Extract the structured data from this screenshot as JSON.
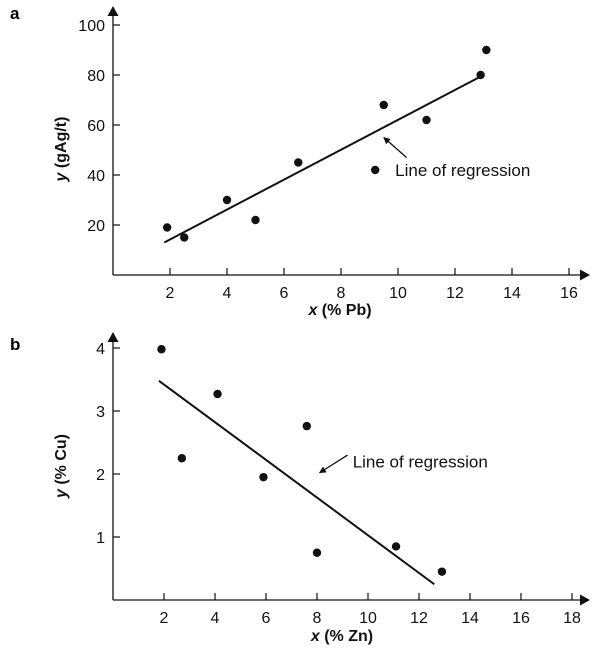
{
  "chart_data": [
    {
      "panel": "a",
      "type": "scatter",
      "x_var": "x",
      "x_unit": " (% Pb)",
      "y_var": "y",
      "y_unit": " (gAg/t)",
      "xlim": [
        0,
        17
      ],
      "ylim": [
        0,
        106
      ],
      "x_ticks": [
        2,
        4,
        6,
        8,
        10,
        12,
        14,
        16
      ],
      "y_ticks": [
        20,
        40,
        60,
        80,
        100
      ],
      "grid": false,
      "points": [
        {
          "x": 1.9,
          "y": 19
        },
        {
          "x": 2.5,
          "y": 15
        },
        {
          "x": 4.0,
          "y": 30
        },
        {
          "x": 5.0,
          "y": 22
        },
        {
          "x": 6.5,
          "y": 45
        },
        {
          "x": 9.2,
          "y": 42
        },
        {
          "x": 9.5,
          "y": 68
        },
        {
          "x": 11.0,
          "y": 62
        },
        {
          "x": 12.9,
          "y": 80
        },
        {
          "x": 13.1,
          "y": 90
        }
      ],
      "regression_line": {
        "x": [
          1.8,
          13.0
        ],
        "y": [
          13,
          80
        ]
      },
      "annotation": {
        "text": "Line of regression",
        "text_at": {
          "x": 9.9,
          "y": 42
        },
        "arrow_from": {
          "x": 10.3,
          "y": 47
        },
        "arrow_to": {
          "x": 9.5,
          "y": 55
        }
      }
    },
    {
      "panel": "b",
      "type": "scatter",
      "x_var": "x",
      "x_unit": " (% Zn)",
      "y_var": "y",
      "y_unit": " (% Cu)",
      "xlim": [
        0,
        19
      ],
      "ylim": [
        0,
        4.3
      ],
      "x_ticks": [
        2,
        4,
        6,
        8,
        10,
        12,
        14,
        16,
        18
      ],
      "y_ticks": [
        1,
        2,
        3,
        4
      ],
      "grid": false,
      "points": [
        {
          "x": 1.9,
          "y": 3.98
        },
        {
          "x": 2.7,
          "y": 2.25
        },
        {
          "x": 4.1,
          "y": 3.27
        },
        {
          "x": 5.9,
          "y": 1.95
        },
        {
          "x": 7.6,
          "y": 2.76
        },
        {
          "x": 8.0,
          "y": 0.75
        },
        {
          "x": 11.1,
          "y": 0.85
        },
        {
          "x": 12.9,
          "y": 0.45
        }
      ],
      "regression_line": {
        "x": [
          1.8,
          12.6
        ],
        "y": [
          3.48,
          0.25
        ]
      },
      "annotation": {
        "text": "Line of regression",
        "text_at": {
          "x": 9.4,
          "y": 2.2
        },
        "arrow_from": {
          "x": 9.2,
          "y": 2.3
        },
        "arrow_to": {
          "x": 8.1,
          "y": 2.02
        }
      }
    }
  ]
}
